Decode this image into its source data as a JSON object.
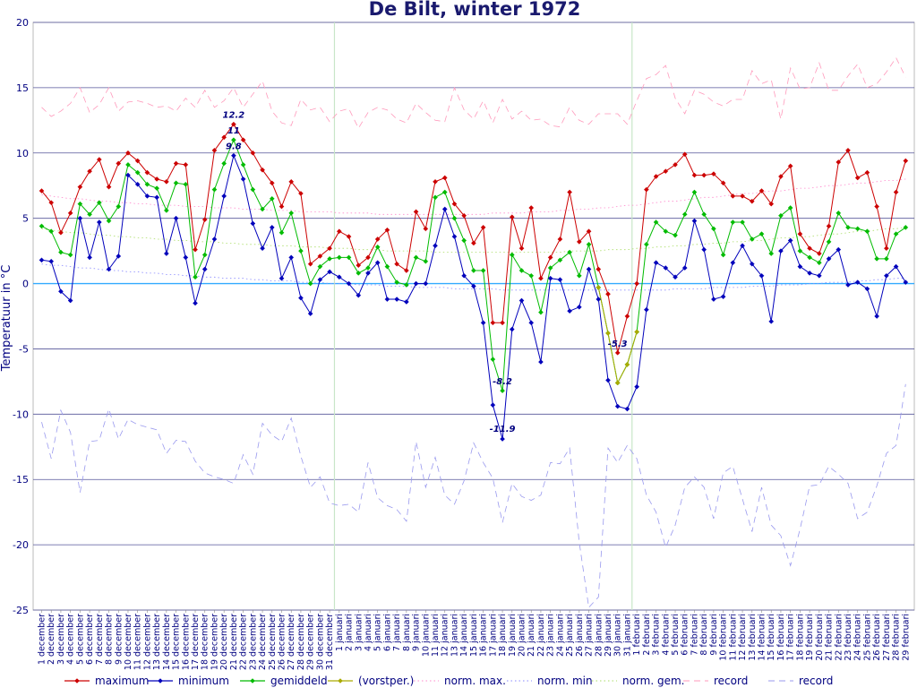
{
  "chart_data": {
    "type": "line",
    "title": "De Bilt, winter 1972",
    "ylabel": "Temperatuur in °C",
    "ylim": [
      -25,
      20
    ],
    "yticks": [
      20,
      15,
      10,
      5,
      0,
      -5,
      -10,
      -15,
      -20,
      -25
    ],
    "grid": true,
    "legend_position": "bottom",
    "x_labels": [
      "1 december",
      "2 december",
      "3 december",
      "4 december",
      "5 december",
      "6 december",
      "7 december",
      "8 december",
      "9 december",
      "10 december",
      "11 december",
      "12 december",
      "13 december",
      "14 december",
      "15 december",
      "16 december",
      "17 december",
      "18 december",
      "19 december",
      "20 december",
      "21 december",
      "22 december",
      "23 december",
      "24 december",
      "25 december",
      "26 december",
      "27 december",
      "28 december",
      "29 december",
      "30 december",
      "31 december",
      "1 januari",
      "2 januari",
      "3 januari",
      "4 januari",
      "5 januari",
      "6 januari",
      "7 januari",
      "8 januari",
      "9 januari",
      "10 januari",
      "11 januari",
      "12 januari",
      "13 januari",
      "14 januari",
      "15 januari",
      "16 januari",
      "17 januari",
      "18 januari",
      "19 januari",
      "20 januari",
      "21 januari",
      "22 januari",
      "23 januari",
      "24 januari",
      "25 januari",
      "26 januari",
      "27 januari",
      "28 januari",
      "29 januari",
      "30 januari",
      "31 januari",
      "1 februari",
      "2 februari",
      "3 februari",
      "4 februari",
      "5 februari",
      "6 februari",
      "7 februari",
      "8 februari",
      "9 februari",
      "10 februari",
      "11 februari",
      "12 februari",
      "13 februari",
      "14 februari",
      "15 februari",
      "16 februari",
      "17 februari",
      "18 februari",
      "19 februari",
      "20 februari",
      "21 februari",
      "22 februari",
      "23 februari",
      "24 februari",
      "25 februari",
      "26 februari",
      "27 februari",
      "28 februari",
      "29 februari"
    ],
    "series": [
      {
        "name": "maximum",
        "color": "#cc0000",
        "style": "solid",
        "marker": true,
        "values": [
          7.1,
          6.2,
          3.9,
          5.4,
          7.4,
          8.6,
          9.5,
          7.4,
          9.2,
          10.0,
          9.4,
          8.5,
          8.0,
          7.8,
          9.2,
          9.1,
          2.6,
          4.9,
          10.2,
          11.2,
          12.2,
          11.0,
          10.0,
          8.7,
          7.7,
          5.9,
          7.8,
          6.9,
          1.5,
          2.1,
          2.7,
          4.0,
          3.6,
          1.4,
          2.0,
          3.4,
          4.1,
          1.5,
          1.0,
          5.5,
          4.2,
          7.8,
          8.1,
          6.1,
          5.2,
          3.1,
          4.3,
          -3.0,
          -3.0,
          5.1,
          2.7,
          5.8,
          0.4,
          2.0,
          3.4,
          7.0,
          3.2,
          4.0,
          1.1,
          -0.8,
          -5.3,
          -2.5,
          0.0,
          7.2,
          8.2,
          8.6,
          9.1,
          9.9,
          8.3,
          8.3,
          8.4,
          7.7,
          6.7,
          6.7,
          6.3,
          7.1,
          6.1,
          8.2,
          9.0,
          3.8,
          2.7,
          2.3,
          4.4,
          9.3,
          10.2,
          8.1,
          8.5,
          5.9,
          2.7,
          7.0,
          9.4
        ]
      },
      {
        "name": "minimum",
        "color": "#0000bb",
        "style": "solid",
        "marker": true,
        "values": [
          1.8,
          1.7,
          -0.6,
          -1.3,
          5.0,
          2.0,
          4.7,
          1.1,
          2.1,
          8.3,
          7.6,
          6.7,
          6.6,
          2.3,
          5.0,
          2.0,
          -1.5,
          1.1,
          3.4,
          6.7,
          9.8,
          8.0,
          4.6,
          2.7,
          4.3,
          0.4,
          2.0,
          -1.1,
          -2.3,
          0.3,
          0.9,
          0.5,
          0.0,
          -0.9,
          0.8,
          1.6,
          -1.2,
          -1.2,
          -1.4,
          0.0,
          0.0,
          2.9,
          5.7,
          3.6,
          0.6,
          -0.2,
          -3.0,
          -9.3,
          -11.9,
          -3.5,
          -1.3,
          -3.0,
          -6.0,
          0.4,
          0.3,
          -2.1,
          -1.8,
          1.1,
          -1.2,
          -7.4,
          -9.4,
          -9.6,
          -7.9,
          -2.0,
          1.6,
          1.2,
          0.5,
          1.2,
          4.8,
          2.6,
          -1.2,
          -1.0,
          1.6,
          2.9,
          1.5,
          0.6,
          -2.9,
          2.5,
          3.3,
          1.3,
          0.8,
          0.6,
          1.9,
          2.6,
          -0.1,
          0.1,
          -0.4,
          -2.5,
          0.6,
          1.3,
          0.1
        ]
      },
      {
        "name": "gemiddeld",
        "color": "#00bb00",
        "style": "solid",
        "marker": true,
        "values": [
          4.4,
          4.0,
          2.4,
          2.2,
          6.1,
          5.3,
          6.2,
          4.8,
          5.9,
          9.1,
          8.5,
          7.6,
          7.3,
          5.6,
          7.7,
          7.6,
          0.5,
          2.2,
          7.2,
          9.2,
          11.0,
          9.1,
          7.2,
          5.7,
          6.5,
          3.9,
          5.4,
          2.5,
          0.0,
          1.3,
          1.9,
          2.0,
          2.0,
          0.8,
          1.2,
          2.8,
          1.3,
          0.1,
          -0.1,
          2.0,
          1.7,
          6.6,
          7.0,
          5.0,
          3.3,
          1.0,
          1.0,
          -5.8,
          -8.2,
          2.2,
          1.0,
          0.6,
          -2.2,
          1.2,
          1.8,
          2.4,
          0.6,
          3.0,
          -0.3,
          -3.8,
          -7.6,
          -6.2,
          -3.7,
          3.0,
          4.7,
          4.0,
          3.7,
          5.3,
          7.0,
          5.3,
          4.2,
          2.2,
          4.7,
          4.7,
          3.4,
          3.8,
          2.3,
          5.2,
          5.8,
          2.5,
          2.0,
          1.6,
          3.2,
          5.4,
          4.3,
          4.2,
          4.0,
          1.9,
          1.9,
          3.8,
          4.3
        ]
      },
      {
        "name": "(vorstper.)",
        "color": "#aaaa00",
        "style": "solid",
        "marker": true,
        "values": [
          null,
          null,
          null,
          null,
          null,
          null,
          null,
          null,
          null,
          null,
          null,
          null,
          null,
          null,
          null,
          null,
          null,
          null,
          null,
          null,
          null,
          null,
          null,
          null,
          null,
          null,
          null,
          null,
          null,
          null,
          null,
          null,
          null,
          null,
          null,
          null,
          null,
          null,
          null,
          null,
          null,
          null,
          null,
          null,
          null,
          null,
          null,
          null,
          null,
          null,
          null,
          null,
          null,
          null,
          null,
          null,
          null,
          null,
          -0.3,
          -3.8,
          -7.6,
          -6.2,
          -3.7,
          null,
          null,
          null,
          null,
          null,
          null,
          null,
          null,
          null,
          null,
          null,
          null,
          null,
          null,
          null,
          null,
          null,
          null,
          null,
          null,
          null,
          null,
          null,
          null,
          null,
          null,
          null,
          null
        ]
      },
      {
        "name": "norm. max.",
        "color": "#ff88cc",
        "style": "dotted",
        "marker": false,
        "values": [
          6.8,
          6.7,
          6.6,
          6.5,
          6.5,
          6.4,
          6.3,
          6.3,
          6.2,
          6.2,
          6.1,
          6.1,
          6.0,
          6.0,
          6.0,
          5.9,
          5.9,
          5.9,
          5.8,
          5.8,
          5.8,
          5.7,
          5.7,
          5.7,
          5.6,
          5.6,
          5.6,
          5.5,
          5.5,
          5.5,
          5.5,
          5.4,
          5.4,
          5.4,
          5.4,
          5.3,
          5.3,
          5.3,
          5.3,
          5.3,
          5.3,
          5.3,
          5.3,
          5.3,
          5.3,
          5.3,
          5.3,
          5.4,
          5.4,
          5.4,
          5.4,
          5.5,
          5.5,
          5.5,
          5.6,
          5.6,
          5.7,
          5.7,
          5.8,
          5.8,
          5.9,
          6.0,
          6.0,
          6.1,
          6.2,
          6.3,
          6.3,
          6.4,
          6.5,
          6.6,
          6.6,
          6.7,
          6.8,
          6.9,
          6.9,
          7.0,
          7.1,
          7.1,
          7.2,
          7.3,
          7.3,
          7.4,
          7.5,
          7.5,
          7.6,
          7.7,
          7.7,
          7.8,
          7.9,
          7.9,
          8.0
        ]
      },
      {
        "name": "norm. min",
        "color": "#8888ff",
        "style": "dotted",
        "marker": false,
        "values": [
          1.5,
          1.4,
          1.4,
          1.3,
          1.2,
          1.2,
          1.1,
          1.0,
          1.0,
          0.9,
          0.9,
          0.8,
          0.8,
          0.7,
          0.7,
          0.6,
          0.6,
          0.5,
          0.5,
          0.4,
          0.4,
          0.4,
          0.3,
          0.3,
          0.2,
          0.2,
          0.2,
          0.1,
          0.1,
          0.1,
          0.0,
          0.0,
          0.0,
          -0.1,
          -0.1,
          -0.1,
          -0.2,
          -0.2,
          -0.2,
          -0.3,
          -0.3,
          -0.3,
          -0.3,
          -0.4,
          -0.4,
          -0.4,
          -0.4,
          -0.4,
          -0.5,
          -0.5,
          -0.5,
          -0.5,
          -0.5,
          -0.5,
          -0.5,
          -0.5,
          -0.5,
          -0.5,
          -0.5,
          -0.5,
          -0.5,
          -0.5,
          -0.5,
          -0.5,
          -0.5,
          -0.5,
          -0.4,
          -0.4,
          -0.4,
          -0.4,
          -0.3,
          -0.3,
          -0.3,
          -0.3,
          -0.2,
          -0.2,
          -0.2,
          -0.1,
          -0.1,
          -0.1,
          0.0,
          0.0,
          0.1,
          0.1,
          0.1,
          0.2,
          0.2,
          0.3,
          0.3,
          0.4,
          0.4
        ]
      },
      {
        "name": "norm. gem.",
        "color": "#aadd66",
        "style": "dotted",
        "marker": false,
        "values": [
          4.2,
          4.1,
          4.0,
          3.9,
          3.9,
          3.8,
          3.7,
          3.7,
          3.6,
          3.6,
          3.5,
          3.5,
          3.4,
          3.4,
          3.3,
          3.3,
          3.2,
          3.2,
          3.2,
          3.1,
          3.1,
          3.0,
          3.0,
          3.0,
          2.9,
          2.9,
          2.9,
          2.8,
          2.8,
          2.8,
          2.7,
          2.7,
          2.7,
          2.6,
          2.6,
          2.6,
          2.5,
          2.5,
          2.5,
          2.5,
          2.5,
          2.4,
          2.4,
          2.4,
          2.4,
          2.4,
          2.4,
          2.4,
          2.4,
          2.4,
          2.4,
          2.4,
          2.4,
          2.4,
          2.4,
          2.5,
          2.5,
          2.5,
          2.5,
          2.6,
          2.6,
          2.6,
          2.7,
          2.7,
          2.8,
          2.8,
          2.9,
          2.9,
          3.0,
          3.0,
          3.1,
          3.1,
          3.2,
          3.2,
          3.3,
          3.3,
          3.4,
          3.5,
          3.5,
          3.6,
          3.6,
          3.7,
          3.8,
          3.8,
          3.9,
          4.0,
          4.0,
          4.1,
          4.2,
          4.2,
          4.3
        ]
      },
      {
        "name": "record",
        "color": "#ff99bb",
        "style": "dashed",
        "marker": false,
        "values": [
          13.5,
          12.8,
          13.2,
          13.8,
          15.0,
          13.1,
          13.7,
          15.0,
          13.2,
          13.9,
          14.0,
          13.8,
          13.5,
          13.6,
          13.2,
          14.2,
          13.5,
          14.8,
          13.5,
          14.0,
          15.0,
          13.5,
          14.5,
          15.5,
          13.2,
          12.3,
          12.1,
          14.1,
          13.3,
          13.5,
          12.4,
          13.2,
          13.4,
          11.9,
          13.1,
          13.5,
          13.3,
          12.6,
          12.3,
          13.8,
          13.1,
          12.5,
          12.4,
          15.0,
          13.3,
          12.6,
          14.0,
          12.3,
          14.1,
          12.6,
          13.2,
          12.5,
          12.6,
          12.1,
          12.0,
          13.5,
          12.5,
          12.2,
          13.0,
          13.0,
          13.0,
          12.2,
          14.0,
          15.7,
          16.0,
          16.7,
          14.2,
          13.0,
          14.8,
          14.5,
          13.9,
          13.6,
          14.1,
          14.1,
          16.3,
          15.3,
          15.6,
          12.6,
          16.5,
          14.9,
          15.0,
          16.9,
          14.8,
          14.8,
          15.9,
          16.8,
          15.0,
          15.3,
          16.2,
          17.3,
          15.8
        ]
      },
      {
        "name": "record",
        "color": "#9999ee",
        "style": "dashed",
        "marker": false,
        "values": [
          -10.6,
          -13.4,
          -9.7,
          -11.4,
          -16.0,
          -12.1,
          -12.0,
          -9.6,
          -11.9,
          -10.4,
          -10.8,
          -11.0,
          -11.2,
          -13.0,
          -12.0,
          -12.1,
          -13.6,
          -14.5,
          -14.8,
          -15.0,
          -15.3,
          -13.1,
          -14.6,
          -10.7,
          -11.6,
          -12.1,
          -10.3,
          -13.2,
          -15.6,
          -14.8,
          -16.8,
          -17.0,
          -16.9,
          -17.5,
          -13.7,
          -16.4,
          -17.0,
          -17.3,
          -18.2,
          -12.1,
          -15.6,
          -13.3,
          -16.2,
          -16.9,
          -15.1,
          -12.2,
          -13.7,
          -14.9,
          -18.3,
          -15.3,
          -16.3,
          -16.6,
          -16.2,
          -13.7,
          -13.8,
          -12.6,
          -19.8,
          -24.8,
          -24.0,
          -12.6,
          -13.7,
          -12.4,
          -13.4,
          -16.2,
          -17.5,
          -20.2,
          -18.5,
          -15.6,
          -14.8,
          -15.6,
          -18.0,
          -14.5,
          -14.0,
          -16.5,
          -19.0,
          -15.6,
          -18.5,
          -19.3,
          -21.6,
          -18.8,
          -15.5,
          -15.4,
          -14.0,
          -14.6,
          -15.3,
          -18.0,
          -17.5,
          -15.5,
          -13.0,
          -12.4,
          -7.7
        ]
      }
    ],
    "annotations": [
      {
        "text": "12.2",
        "series": "maximum",
        "index": 20
      },
      {
        "text": "11",
        "series": "gemiddeld",
        "index": 20
      },
      {
        "text": "9.8",
        "series": "minimum",
        "index": 20
      },
      {
        "text": "-8.2",
        "series": "gemiddeld",
        "index": 48
      },
      {
        "text": "-11.9",
        "series": "minimum",
        "index": 48
      },
      {
        "text": "-5.3",
        "series": "maximum",
        "index": 60
      }
    ],
    "month_separators": [
      31,
      62
    ]
  }
}
